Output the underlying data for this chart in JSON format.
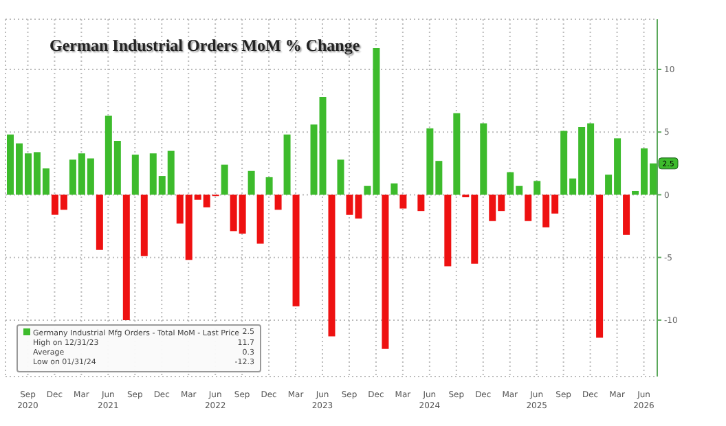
{
  "chart_data": {
    "type": "bar",
    "title": "German Industrial Orders MoM % Change",
    "categories": [
      null,
      null,
      "Sep 2020",
      null,
      null,
      "Dec",
      null,
      null,
      "Mar",
      null,
      null,
      "Jun 2021",
      null,
      null,
      "Sep",
      null,
      null,
      "Dec",
      null,
      null,
      "Mar",
      null,
      null,
      "Jun 2022",
      null,
      null,
      "Sep",
      null,
      null,
      "Dec",
      null,
      null,
      "Mar",
      null,
      null,
      "Jun 2023",
      null,
      null,
      "Sep",
      null,
      null,
      "Dec",
      null,
      null,
      "Mar",
      null,
      null,
      "Jun 2024",
      null,
      null,
      "Sep",
      null,
      null,
      "Dec",
      null,
      null,
      "Mar",
      null,
      null,
      "Jun 2025",
      null,
      null,
      "Sep",
      null,
      null,
      "Dec",
      null,
      null,
      "Mar",
      null,
      null,
      "Jun 2026",
      null
    ],
    "series": [
      {
        "name": "Germany Industrial Mfg Orders - Total MoM - Last Price",
        "color": "#3dbb2c",
        "values": [
          4.8,
          4.1,
          3.3,
          3.4,
          2.1,
          -1.6,
          -1.2,
          2.8,
          3.3,
          2.9,
          -4.4,
          6.3,
          4.3,
          -10.0,
          3.2,
          -4.9,
          3.3,
          1.5,
          3.5,
          -2.3,
          -5.2,
          -0.4,
          -1.0,
          -0.1,
          2.4,
          -2.9,
          -3.1,
          1.9,
          -3.9,
          1.4,
          -1.2,
          4.8,
          -8.9,
          0,
          5.6,
          7.8,
          -11.3,
          2.8,
          -1.6,
          -1.9,
          0.7,
          11.7,
          -12.3,
          0.9,
          -1.1,
          0,
          -1.3,
          5.3,
          2.7,
          -5.7,
          6.5,
          -0.2,
          -5.5,
          5.7,
          -2.1,
          -1.3,
          1.8,
          0.7,
          -2.1,
          1.1,
          -2.6,
          -1.5,
          5.1,
          1.3,
          5.4,
          5.7,
          -11.4,
          1.6,
          4.5,
          -3.2,
          0.3,
          3.7,
          2.5
        ],
        "colors": [
          "#3dbb2c",
          "#3dbb2c",
          "#3dbb2c",
          "#3dbb2c",
          "#3dbb2c",
          "#ee1111",
          "#ee1111",
          "#3dbb2c",
          "#3dbb2c",
          "#3dbb2c",
          "#ee1111",
          "#3dbb2c",
          "#3dbb2c",
          "#ee1111",
          "#3dbb2c",
          "#ee1111",
          "#3dbb2c",
          "#3dbb2c",
          "#3dbb2c",
          "#ee1111",
          "#ee1111",
          "#ee1111",
          "#ee1111",
          "#ee1111",
          "#3dbb2c",
          "#ee1111",
          "#ee1111",
          "#3dbb2c",
          "#ee1111",
          "#3dbb2c",
          "#ee1111",
          "#3dbb2c",
          "#ee1111",
          "#3dbb2c",
          "#3dbb2c",
          "#3dbb2c",
          "#ee1111",
          "#3dbb2c",
          "#ee1111",
          "#ee1111",
          "#3dbb2c",
          "#3dbb2c",
          "#ee1111",
          "#3dbb2c",
          "#ee1111",
          "#3dbb2c",
          "#ee1111",
          "#3dbb2c",
          "#3dbb2c",
          "#ee1111",
          "#3dbb2c",
          "#ee1111",
          "#ee1111",
          "#3dbb2c",
          "#ee1111",
          "#ee1111",
          "#3dbb2c",
          "#3dbb2c",
          "#ee1111",
          "#3dbb2c",
          "#ee1111",
          "#ee1111",
          "#3dbb2c",
          "#3dbb2c",
          "#3dbb2c",
          "#3dbb2c",
          "#ee1111",
          "#3dbb2c",
          "#3dbb2c",
          "#ee1111",
          "#3dbb2c",
          "#3dbb2c",
          "#3dbb2c"
        ]
      }
    ],
    "ylim": [
      -14.5,
      14
    ],
    "yticks": [
      -10,
      -5,
      0,
      5,
      10
    ],
    "grid": true,
    "legend": "bottom left",
    "annotations": [
      {
        "text": "2.5",
        "y": 2.5
      },
      "2.5",
      "High on 12/31/23",
      "11.7",
      "Average",
      "0.3",
      "Low on 01/31/24",
      "-12.3"
    ]
  }
}
